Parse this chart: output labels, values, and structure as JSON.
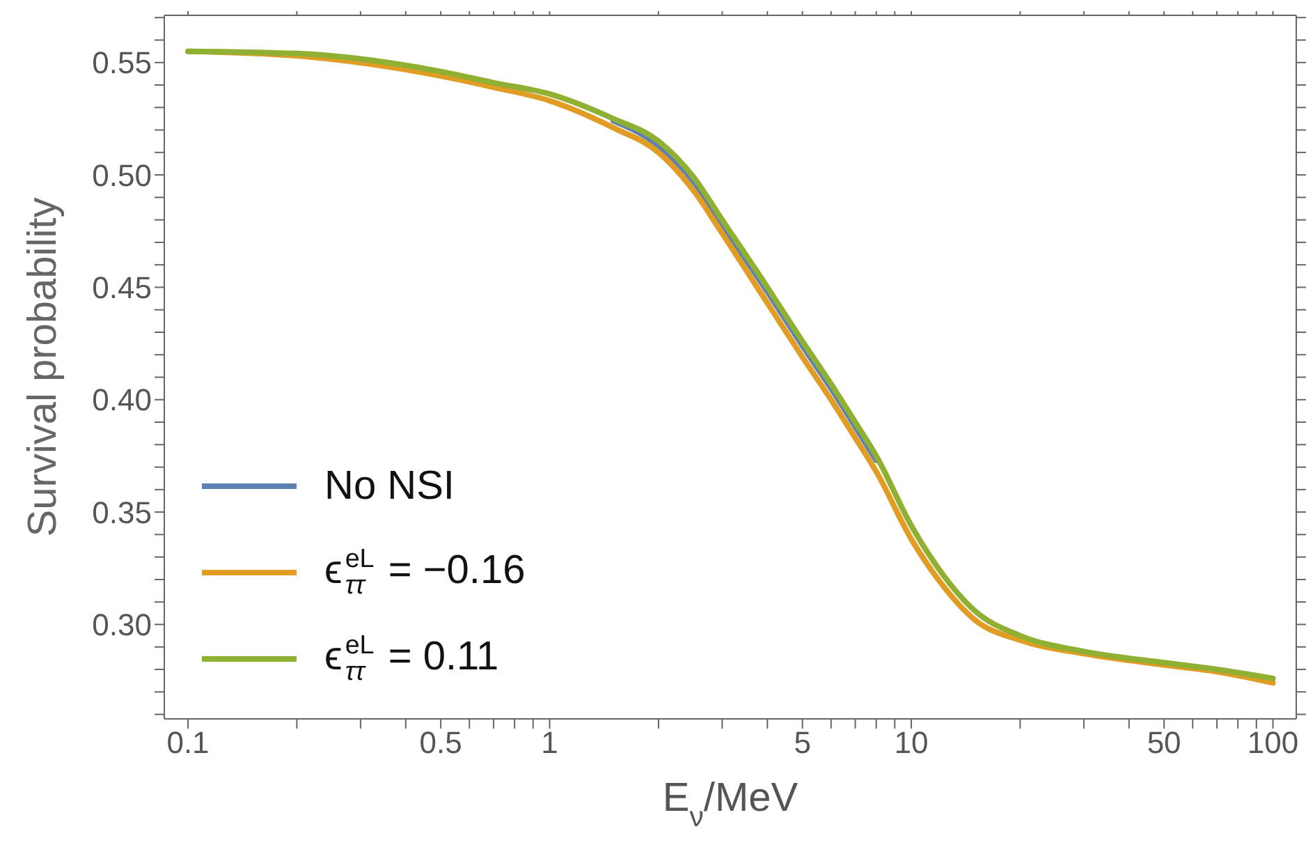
{
  "chart_data": {
    "type": "line",
    "xlabel": "E$_{ν}$/MeV",
    "ylabel": "Survival probability",
    "log": "x",
    "x": [
      0.1,
      0.2,
      0.5,
      0.7,
      1,
      1.5,
      2,
      2.5,
      3,
      4,
      5,
      6,
      7,
      8,
      10,
      12,
      15,
      20,
      30,
      50,
      70,
      100
    ],
    "series": [
      {
        "name": "No NSI",
        "color": "#5e81b5",
        "values": [
          null,
          null,
          null,
          null,
          null,
          0.524,
          0.513,
          0.497,
          0.478,
          0.448,
          0.424,
          0.405,
          0.388,
          0.373,
          null,
          null,
          null,
          null,
          null,
          null,
          null,
          null
        ]
      },
      {
        "name": "ϵ$_{ττ}$$^{eL}$ = −0.16",
        "color": "#e19c24",
        "values": [
          0.555,
          0.553,
          0.544,
          0.539,
          0.533,
          0.521,
          0.51,
          0.493,
          0.474,
          0.443,
          0.419,
          0.4,
          0.383,
          0.368,
          0.338,
          0.319,
          0.302,
          0.293,
          0.287,
          0.282,
          0.279,
          0.274
        ]
      },
      {
        "name": "ϵ$_{ττ}$$^{eL}$ = 0.11",
        "color": "#8fb032",
        "values": [
          0.555,
          0.554,
          0.546,
          0.541,
          0.536,
          0.525,
          0.515,
          0.499,
          0.48,
          0.45,
          0.426,
          0.407,
          0.39,
          0.375,
          0.344,
          0.324,
          0.306,
          0.295,
          0.288,
          0.283,
          0.28,
          0.276
        ]
      }
    ],
    "xlim": [
      0.086,
      116
    ],
    "xticks": [
      0.1,
      {
        "value": 0.2,
        "label": null
      },
      {
        "value": 0.3,
        "label": null
      },
      {
        "value": 0.4,
        "label": null
      },
      0.5,
      {
        "value": 0.6,
        "label": null
      },
      {
        "value": 0.7,
        "label": null
      },
      {
        "value": 0.8,
        "label": null
      },
      {
        "value": 0.9,
        "label": null
      },
      1,
      {
        "value": 2,
        "label": null
      },
      {
        "value": 3,
        "label": null
      },
      {
        "value": 4,
        "label": null
      },
      5,
      {
        "value": 6,
        "label": null
      },
      {
        "value": 7,
        "label": null
      },
      {
        "value": 8,
        "label": null
      },
      {
        "value": 9,
        "label": null
      },
      10,
      {
        "value": 20,
        "label": null
      },
      {
        "value": 30,
        "label": null
      },
      {
        "value": 40,
        "label": null
      },
      50,
      {
        "value": 60,
        "label": null
      },
      {
        "value": 70,
        "label": null
      },
      {
        "value": 80,
        "label": null
      },
      {
        "value": 90,
        "label": null
      },
      100
    ],
    "ylim": [
      0.258,
      0.571
    ],
    "yticks": [
      {
        "value": 0.26,
        "label": null
      },
      {
        "value": 0.27,
        "label": null
      },
      {
        "value": 0.28,
        "label": null
      },
      {
        "value": 0.29,
        "label": null
      },
      {
        "value": 0.3,
        "label": "0.30"
      },
      {
        "value": 0.31,
        "label": null
      },
      {
        "value": 0.32,
        "label": null
      },
      {
        "value": 0.33,
        "label": null
      },
      {
        "value": 0.34,
        "label": null
      },
      {
        "value": 0.35,
        "label": "0.35"
      },
      {
        "value": 0.36,
        "label": null
      },
      {
        "value": 0.37,
        "label": null
      },
      {
        "value": 0.38,
        "label": null
      },
      {
        "value": 0.39,
        "label": null
      },
      {
        "value": 0.4,
        "label": "0.40"
      },
      {
        "value": 0.41,
        "label": null
      },
      {
        "value": 0.42,
        "label": null
      },
      {
        "value": 0.43,
        "label": null
      },
      {
        "value": 0.44,
        "label": null
      },
      {
        "value": 0.45,
        "label": "0.45"
      },
      {
        "value": 0.46,
        "label": null
      },
      {
        "value": 0.47,
        "label": null
      },
      {
        "value": 0.48,
        "label": null
      },
      {
        "value": 0.49,
        "label": null
      },
      {
        "value": 0.5,
        "label": "0.50"
      },
      {
        "value": 0.51,
        "label": null
      },
      {
        "value": 0.52,
        "label": null
      },
      {
        "value": 0.53,
        "label": null
      },
      {
        "value": 0.54,
        "label": null
      },
      {
        "value": 0.55,
        "label": "0.55"
      },
      {
        "value": 0.56,
        "label": null
      },
      {
        "value": 0.57,
        "label": null
      }
    ],
    "grid": false,
    "legend": "bottom left",
    "marker": "none",
    "line_style": "solid"
  }
}
